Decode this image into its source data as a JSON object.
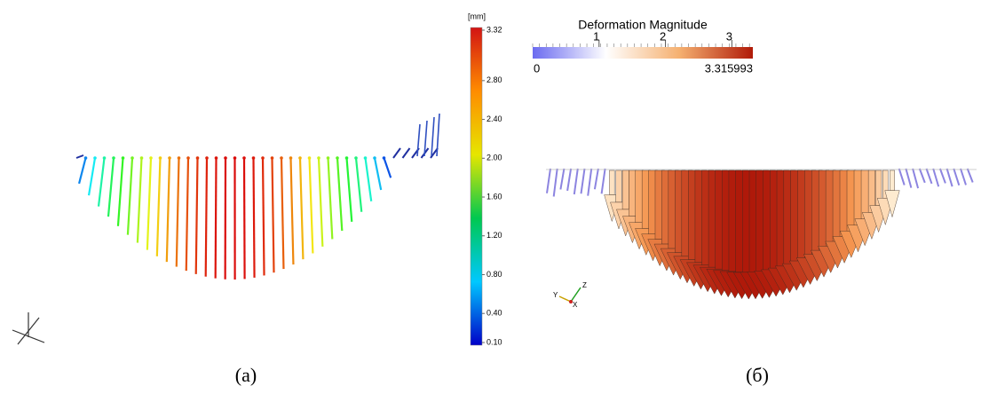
{
  "panels": [
    {
      "caption": "(a)",
      "colorbar": {
        "unit": "[mm]",
        "ticks": [
          {
            "value": 3.32,
            "label": "3.32"
          },
          {
            "value": 2.8,
            "label": "2.80"
          },
          {
            "value": 2.4,
            "label": "2.40"
          },
          {
            "value": 2.0,
            "label": "2.00"
          },
          {
            "value": 1.6,
            "label": "1.60"
          },
          {
            "value": 1.2,
            "label": "1.20"
          },
          {
            "value": 0.8,
            "label": "0.80"
          },
          {
            "value": 0.4,
            "label": "0.40"
          },
          {
            "value": 0.1,
            "label": "0.10"
          }
        ],
        "colors": [
          "#0000c8",
          "#00c8ff",
          "#00c850",
          "#e6e600",
          "#ff8c00",
          "#d21414"
        ]
      }
    },
    {
      "caption": "(б)",
      "colorbar": {
        "title": "Deformation Magnitude",
        "range": [
          0,
          3.315993
        ],
        "ticks": [
          1,
          2,
          3
        ],
        "colors": [
          "#6b6bf0",
          "#ffffff",
          "#f5b070",
          "#b01a08"
        ]
      },
      "axes_labels": [
        "Y",
        "Z",
        "X"
      ]
    }
  ]
}
